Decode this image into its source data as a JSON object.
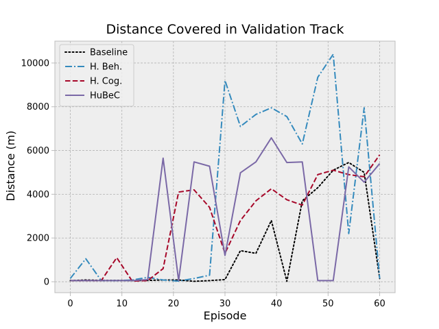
{
  "chart_data": {
    "type": "line",
    "title": "Distance Covered in Validation Track",
    "xlabel": "Episode",
    "ylabel": "Distance (m)",
    "xlim": [
      -3,
      63
    ],
    "ylim": [
      -500,
      11000
    ],
    "xticks": [
      0,
      10,
      20,
      30,
      40,
      50,
      60
    ],
    "yticks": [
      0,
      2000,
      4000,
      6000,
      8000,
      10000
    ],
    "grid": true,
    "legend_position": "top-left",
    "series": [
      {
        "name": "Baseline",
        "color": "#000000",
        "style": "dotted",
        "x": [
          0,
          3,
          6,
          9,
          12,
          15,
          18,
          21,
          24,
          27,
          30,
          33,
          36,
          39,
          42,
          45,
          48,
          51,
          54,
          57,
          60
        ],
        "y": [
          50,
          80,
          60,
          60,
          50,
          60,
          80,
          80,
          20,
          50,
          100,
          1420,
          1300,
          2800,
          20,
          3700,
          4300,
          5100,
          5450,
          5000,
          150
        ]
      },
      {
        "name": "H. Beh.",
        "color": "#348ABD",
        "style": "dashdot",
        "x": [
          0,
          3,
          6,
          9,
          12,
          15,
          18,
          21,
          24,
          27,
          30,
          33,
          36,
          39,
          42,
          45,
          48,
          51,
          54,
          57,
          60
        ],
        "y": [
          150,
          1050,
          50,
          50,
          80,
          200,
          80,
          30,
          150,
          300,
          9200,
          7100,
          7650,
          7950,
          7550,
          6300,
          9350,
          10400,
          2200,
          7950,
          150
        ]
      },
      {
        "name": "H. Cog.",
        "color": "#A60628",
        "style": "dashed",
        "x": [
          0,
          3,
          6,
          9,
          12,
          15,
          18,
          21,
          24,
          27,
          30,
          33,
          36,
          39,
          42,
          45,
          48,
          51,
          54,
          57,
          60
        ],
        "y": [
          50,
          50,
          50,
          1100,
          30,
          50,
          600,
          4100,
          4200,
          3400,
          1300,
          2800,
          3700,
          4250,
          3750,
          3500,
          4900,
          5100,
          4900,
          4800,
          5800
        ]
      },
      {
        "name": "HuBeC",
        "color": "#7A68A6",
        "style": "solid",
        "x": [
          0,
          3,
          6,
          9,
          12,
          15,
          18,
          21,
          24,
          27,
          30,
          33,
          36,
          39,
          42,
          45,
          48,
          51,
          54,
          57,
          60
        ],
        "y": [
          50,
          50,
          50,
          50,
          50,
          100,
          5650,
          50,
          5480,
          5280,
          1200,
          4980,
          5480,
          6580,
          5450,
          5480,
          50,
          50,
          5250,
          4550,
          5400
        ]
      }
    ]
  }
}
